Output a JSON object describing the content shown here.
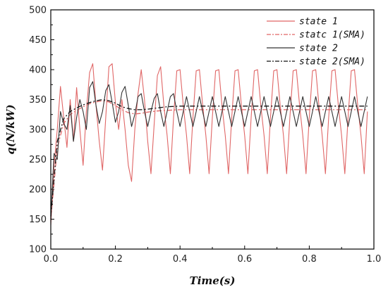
{
  "chart_data": {
    "type": "line",
    "title": "",
    "xlabel": "Time(s)",
    "ylabel": "q(N/kW)",
    "xlim": [
      0.0,
      1.0
    ],
    "ylim": [
      100,
      500
    ],
    "xticks": [
      "0.0",
      "0.2",
      "0.4",
      "0.6",
      "0.8",
      "1.0"
    ],
    "yticks": [
      "100",
      "150",
      "200",
      "250",
      "300",
      "350",
      "400",
      "450",
      "500"
    ],
    "grid": false,
    "legend_position": "top-right",
    "series": [
      {
        "name": "state 1",
        "color": "#e06666",
        "style": "solid",
        "x": [
          0.0,
          0.01,
          0.02,
          0.03,
          0.04,
          0.05,
          0.06,
          0.07,
          0.08,
          0.09,
          0.1,
          0.11,
          0.12,
          0.13,
          0.14,
          0.15,
          0.16,
          0.17,
          0.18,
          0.19,
          0.2,
          0.21,
          0.22,
          0.23,
          0.24,
          0.25,
          0.26,
          0.27,
          0.28,
          0.29,
          0.3,
          0.31,
          0.32,
          0.33,
          0.34,
          0.35,
          0.36,
          0.37,
          0.38,
          0.39,
          0.4,
          0.41,
          0.42,
          0.43,
          0.44,
          0.45,
          0.46,
          0.47,
          0.48,
          0.49,
          0.5,
          0.51,
          0.52,
          0.53,
          0.54,
          0.55,
          0.56,
          0.57,
          0.58,
          0.59,
          0.6,
          0.61,
          0.62,
          0.63,
          0.64,
          0.65,
          0.66,
          0.67,
          0.68,
          0.69,
          0.7,
          0.71,
          0.72,
          0.73,
          0.74,
          0.75,
          0.76,
          0.77,
          0.78,
          0.79,
          0.8,
          0.81,
          0.82,
          0.83,
          0.84,
          0.85,
          0.86,
          0.87,
          0.88,
          0.89,
          0.9,
          0.91,
          0.92,
          0.93,
          0.94,
          0.95,
          0.96,
          0.97,
          0.98
        ],
        "values": [
          140,
          240,
          300,
          372,
          320,
          270,
          350,
          280,
          370,
          300,
          240,
          330,
          395,
          410,
          340,
          280,
          232,
          320,
          405,
          410,
          345,
          300,
          350,
          300,
          240,
          213,
          300,
          360,
          400,
          350,
          280,
          226,
          310,
          390,
          405,
          340,
          290,
          226,
          320,
          398,
          400,
          340,
          290,
          226,
          320,
          398,
          400,
          340,
          290,
          226,
          320,
          398,
          400,
          340,
          290,
          226,
          320,
          398,
          400,
          340,
          290,
          226,
          320,
          398,
          400,
          340,
          290,
          226,
          320,
          398,
          400,
          340,
          290,
          226,
          320,
          398,
          400,
          340,
          290,
          226,
          320,
          398,
          400,
          340,
          290,
          226,
          320,
          398,
          400,
          340,
          290,
          226,
          320,
          398,
          400,
          340,
          290,
          226,
          330
        ]
      },
      {
        "name": "statc 1(SMA)",
        "color": "#e06666",
        "style": "dashdot",
        "x": [
          0.0,
          0.02,
          0.04,
          0.06,
          0.08,
          0.1,
          0.12,
          0.14,
          0.16,
          0.18,
          0.2,
          0.22,
          0.24,
          0.26,
          0.28,
          0.3,
          0.33,
          0.36,
          0.4,
          0.5,
          0.6,
          0.7,
          0.8,
          0.9,
          0.98
        ],
        "values": [
          150,
          270,
          310,
          325,
          332,
          338,
          343,
          346,
          348,
          346,
          340,
          333,
          328,
          326,
          327,
          329,
          331,
          332,
          333,
          333,
          333,
          333,
          333,
          333,
          333
        ]
      },
      {
        "name": "state 2",
        "color": "#333333",
        "style": "solid",
        "x": [
          0.0,
          0.01,
          0.02,
          0.03,
          0.04,
          0.05,
          0.06,
          0.07,
          0.08,
          0.09,
          0.1,
          0.11,
          0.12,
          0.13,
          0.14,
          0.15,
          0.16,
          0.17,
          0.18,
          0.19,
          0.2,
          0.21,
          0.22,
          0.23,
          0.24,
          0.25,
          0.26,
          0.27,
          0.28,
          0.29,
          0.3,
          0.31,
          0.32,
          0.33,
          0.34,
          0.35,
          0.36,
          0.37,
          0.38,
          0.39,
          0.4,
          0.42,
          0.44,
          0.46,
          0.48,
          0.5,
          0.52,
          0.54,
          0.56,
          0.58,
          0.6,
          0.62,
          0.64,
          0.66,
          0.68,
          0.7,
          0.72,
          0.74,
          0.76,
          0.78,
          0.8,
          0.82,
          0.84,
          0.86,
          0.88,
          0.9,
          0.92,
          0.94,
          0.96,
          0.98
        ],
        "values": [
          150,
          260,
          250,
          330,
          310,
          300,
          340,
          280,
          320,
          350,
          330,
          300,
          370,
          380,
          340,
          310,
          330,
          365,
          375,
          345,
          312,
          330,
          362,
          372,
          340,
          305,
          325,
          355,
          360,
          330,
          305,
          330,
          352,
          360,
          330,
          305,
          330,
          355,
          360,
          330,
          305,
          355,
          305,
          355,
          305,
          355,
          305,
          355,
          305,
          355,
          305,
          355,
          305,
          355,
          305,
          355,
          305,
          355,
          305,
          355,
          305,
          355,
          305,
          355,
          305,
          355,
          305,
          355,
          305,
          355
        ]
      },
      {
        "name": "state 2(SMA)",
        "color": "#111111",
        "style": "dashdot",
        "x": [
          0.0,
          0.02,
          0.04,
          0.06,
          0.08,
          0.1,
          0.12,
          0.14,
          0.16,
          0.18,
          0.2,
          0.22,
          0.24,
          0.26,
          0.28,
          0.3,
          0.33,
          0.36,
          0.4,
          0.5,
          0.6,
          0.7,
          0.8,
          0.9,
          0.98
        ],
        "values": [
          155,
          280,
          318,
          330,
          336,
          341,
          345,
          348,
          350,
          348,
          344,
          338,
          335,
          333,
          333,
          334,
          336,
          338,
          339,
          339,
          339,
          339,
          339,
          339,
          339
        ]
      }
    ]
  }
}
